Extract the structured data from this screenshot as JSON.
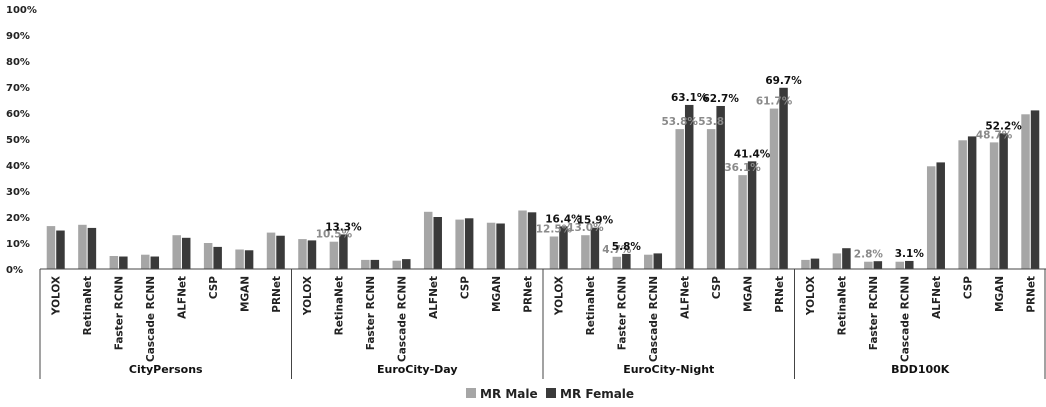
{
  "chart_data": {
    "type": "bar",
    "title": "",
    "xlabel": "",
    "ylabel": "",
    "ylim": [
      0,
      100
    ],
    "y_ticks": [
      "0%",
      "10%",
      "20%",
      "30%",
      "40%",
      "50%",
      "60%",
      "70%",
      "80%",
      "90%",
      "100%"
    ],
    "grid": false,
    "legend_position": "bottom-center",
    "colors": {
      "male": "#a6a6a6",
      "female": "#3a3a3a",
      "axis": "#444444"
    },
    "groups": [
      {
        "name": "CityPersons",
        "categories": [
          "YOLOX",
          "RetinaNet",
          "Faster RCNN",
          "Cascade RCNN",
          "ALFNet",
          "CSP",
          "MGAN",
          "PRNet"
        ],
        "male": [
          16.5,
          17.0,
          5.0,
          5.5,
          13.0,
          10.0,
          7.5,
          14.0
        ],
        "female": [
          14.8,
          15.8,
          4.8,
          4.8,
          12.0,
          8.5,
          7.2,
          12.8
        ]
      },
      {
        "name": "EuroCity-Day",
        "categories": [
          "YOLOX",
          "RetinaNet",
          "Faster RCNN",
          "Cascade RCNN",
          "ALFNet",
          "CSP",
          "MGAN",
          "PRNet"
        ],
        "male": [
          11.5,
          10.5,
          3.5,
          3.2,
          22.0,
          19.0,
          17.8,
          22.5
        ],
        "female": [
          11.0,
          13.3,
          3.5,
          3.8,
          20.0,
          19.5,
          17.5,
          21.8
        ]
      },
      {
        "name": "EuroCity-Night",
        "categories": [
          "YOLOX",
          "RetinaNet",
          "Faster RCNN",
          "Cascade RCNN",
          "ALFNet",
          "CSP",
          "MGAN",
          "PRNet"
        ],
        "male": [
          12.5,
          13.0,
          4.7,
          5.5,
          53.8,
          53.8,
          36.1,
          61.7
        ],
        "female": [
          16.4,
          15.9,
          5.8,
          6.0,
          63.1,
          62.7,
          41.4,
          69.7
        ]
      },
      {
        "name": "BDD100K",
        "categories": [
          "YOLOX",
          "RetinaNet",
          "Faster RCNN",
          "Cascade RCNN",
          "ALFNet",
          "CSP",
          "MGAN",
          "PRNet"
        ],
        "male": [
          3.5,
          6.0,
          2.8,
          2.8,
          39.5,
          49.5,
          48.7,
          59.5
        ],
        "female": [
          4.0,
          8.0,
          3.0,
          3.1,
          41.0,
          51.0,
          52.2,
          61.0
        ]
      }
    ],
    "data_labels": [
      {
        "group": 1,
        "cat": 1,
        "series": "male",
        "text": "10.5%"
      },
      {
        "group": 1,
        "cat": 1,
        "series": "female",
        "text": "13.3%"
      },
      {
        "group": 2,
        "cat": 0,
        "series": "male",
        "text": "12.5%"
      },
      {
        "group": 2,
        "cat": 0,
        "series": "female",
        "text": "16.4%"
      },
      {
        "group": 2,
        "cat": 1,
        "series": "male",
        "text": "13.0%"
      },
      {
        "group": 2,
        "cat": 1,
        "series": "female",
        "text": "15.9%"
      },
      {
        "group": 2,
        "cat": 2,
        "series": "male",
        "text": "4.7%"
      },
      {
        "group": 2,
        "cat": 2,
        "series": "female",
        "text": "5.8%"
      },
      {
        "group": 2,
        "cat": 4,
        "series": "male",
        "text": "53.8%"
      },
      {
        "group": 2,
        "cat": 4,
        "series": "female",
        "text": "63.1%"
      },
      {
        "group": 2,
        "cat": 5,
        "series": "male",
        "text": "53.8"
      },
      {
        "group": 2,
        "cat": 5,
        "series": "female",
        "text": "62.7%"
      },
      {
        "group": 2,
        "cat": 6,
        "series": "male",
        "text": "36.1%"
      },
      {
        "group": 2,
        "cat": 6,
        "series": "female",
        "text": "41.4%"
      },
      {
        "group": 2,
        "cat": 7,
        "series": "male",
        "text": "61.7%"
      },
      {
        "group": 2,
        "cat": 7,
        "series": "female",
        "text": "69.7%"
      },
      {
        "group": 3,
        "cat": 2,
        "series": "male",
        "text": "2.8%"
      },
      {
        "group": 3,
        "cat": 3,
        "series": "female",
        "text": "3.1%"
      },
      {
        "group": 3,
        "cat": 6,
        "series": "male",
        "text": "48.7%"
      },
      {
        "group": 3,
        "cat": 6,
        "series": "female",
        "text": "52.2%"
      }
    ],
    "legend": {
      "male": "MR Male",
      "female": "MR Female"
    }
  }
}
